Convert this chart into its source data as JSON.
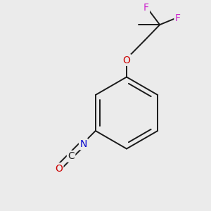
{
  "background_color": "#ebebeb",
  "bond_color": "#1a1a1a",
  "atom_colors": {
    "F": "#cc22cc",
    "O": "#cc0000",
    "N": "#0000cc",
    "C": "#1a1a1a"
  },
  "figsize": [
    3.0,
    3.0
  ],
  "dpi": 100,
  "bond_lw": 1.4,
  "font_size": 10
}
